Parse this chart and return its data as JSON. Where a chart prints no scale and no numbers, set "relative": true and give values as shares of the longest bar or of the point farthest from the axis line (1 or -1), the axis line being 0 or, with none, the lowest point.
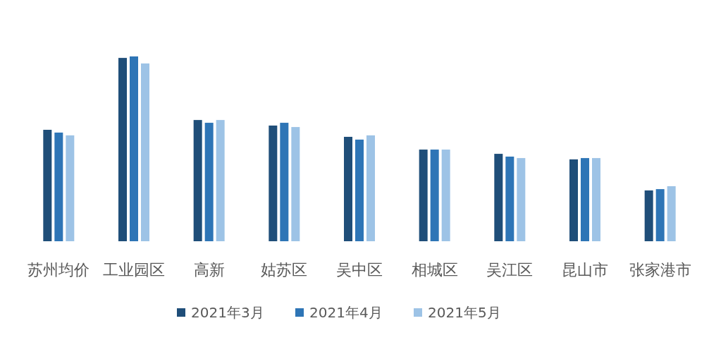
{
  "chart_data": {
    "type": "bar",
    "relative": true,
    "legend": "bottom",
    "categories": [
      "苏州均价",
      "工业园区",
      "高新",
      "姑苏区",
      "吴中区",
      "相城区",
      "吴江区",
      "昆山市",
      "张家港市"
    ],
    "series": [
      {
        "name": "2021年3月",
        "color": "#1f4e79",
        "values": [
          0.603,
          0.992,
          0.656,
          0.626,
          0.565,
          0.496,
          0.473,
          0.443,
          0.275
        ]
      },
      {
        "name": "2021年4月",
        "color": "#2e75b6",
        "values": [
          0.588,
          1,
          0.641,
          0.641,
          0.55,
          0.496,
          0.458,
          0.45,
          0.282
        ]
      },
      {
        "name": "2021年5月",
        "color": "#9dc3e6",
        "values": [
          0.573,
          0.962,
          0.656,
          0.618,
          0.573,
          0.496,
          0.45,
          0.45,
          0.298
        ]
      }
    ]
  }
}
